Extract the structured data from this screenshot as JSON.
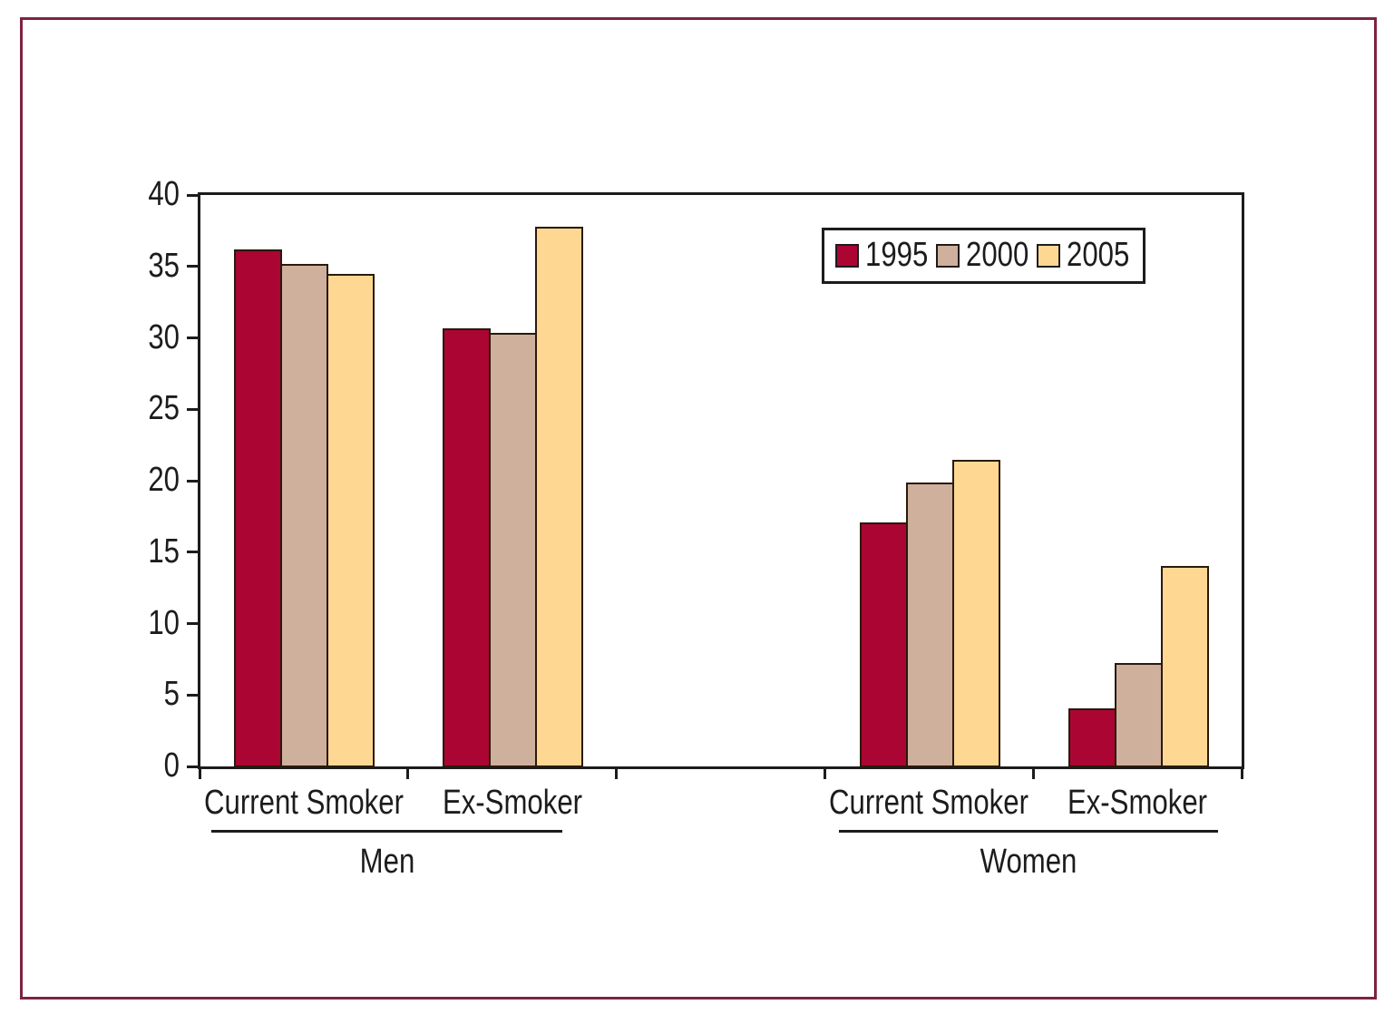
{
  "figure": {
    "frame_color": "#7e2242",
    "axis_color": "#1c1c1c",
    "bar_outline_color": "#291a0d",
    "background_color": "#ffffff"
  },
  "chart_data": {
    "type": "bar",
    "title": "",
    "xlabel": "",
    "ylabel": "",
    "ylim": [
      0,
      40
    ],
    "yticks": [
      0,
      5,
      10,
      15,
      20,
      25,
      30,
      35,
      40
    ],
    "grid": false,
    "legend_position": "top-right-inside",
    "categories": [
      "Current Smoker",
      "Ex-Smoker",
      "Current Smoker",
      "Ex-Smoker"
    ],
    "category_groups": [
      {
        "label": "Men",
        "categories": [
          "Current Smoker",
          "Ex-Smoker"
        ]
      },
      {
        "label": "Women",
        "categories": [
          "Current Smoker",
          "Ex-Smoker"
        ]
      }
    ],
    "series": [
      {
        "name": "1995",
        "color": "#ab0533",
        "values": [
          36.1,
          30.6,
          17.0,
          4.0
        ]
      },
      {
        "name": "2000",
        "color": "#cfb09c",
        "values": [
          35.1,
          30.3,
          19.8,
          7.2
        ]
      },
      {
        "name": "2005",
        "color": "#fed893",
        "values": [
          34.4,
          37.7,
          21.4,
          14.0
        ]
      }
    ]
  }
}
